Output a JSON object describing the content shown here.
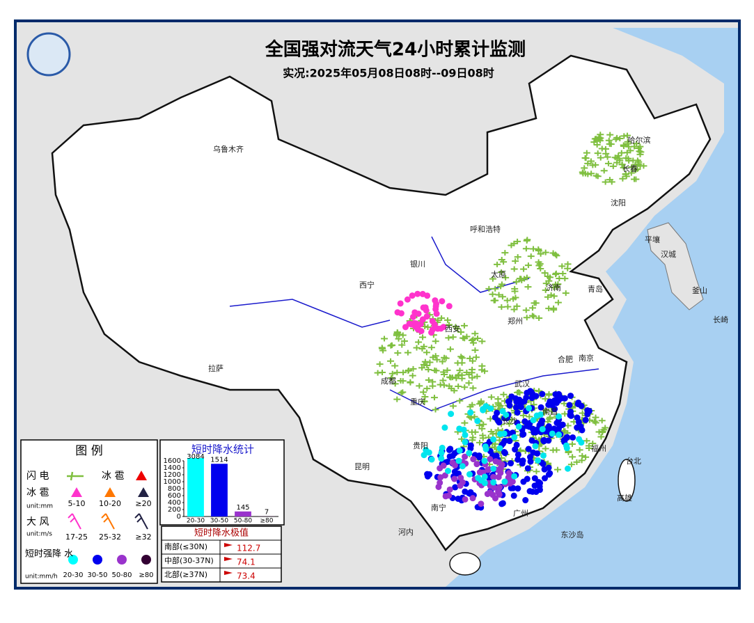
{
  "header": {
    "title": "全国强对流天气24小时累计监测",
    "subtitle": "实况:2025年05月08日08时--09日08时"
  },
  "cities": [
    "乌鲁木齐",
    "哈尔滨",
    "长春",
    "沈阳",
    "呼和浩特",
    "平壤",
    "汉城",
    "银川",
    "太原",
    "济南",
    "青岛",
    "釜山",
    "西宁",
    "郑州",
    "长崎",
    "西安",
    "合肥",
    "南京",
    "拉萨",
    "成都",
    "武汉",
    "重庆",
    "南昌",
    "长沙",
    "福州",
    "贵阳",
    "昆明",
    "台北",
    "南宁",
    "广州",
    "高雄",
    "河内",
    "东沙岛"
  ],
  "legend": {
    "title": "图 例",
    "lightning": "闪 电",
    "hail": "冰 雹",
    "hail_size": {
      "label": "冰 雹",
      "unit": "unit:mm",
      "items": [
        "5-10",
        "10-20",
        "≥20"
      ]
    },
    "wind": {
      "label": "大 风",
      "unit": "unit:m/s",
      "items": [
        "17-25",
        "25-32",
        "≥32"
      ]
    },
    "rain": {
      "label": "短时强降 水",
      "unit": "unit:mm/h",
      "items": [
        "20-30",
        "30-50",
        "50-80",
        "≥80"
      ]
    }
  },
  "stats": {
    "title": "短时降水统计",
    "categories": [
      "20-30",
      "30-50",
      "50-80",
      "≥80"
    ],
    "values": [
      3084,
      1514,
      145,
      7
    ],
    "colors": [
      "#00ffff",
      "#0000ee",
      "#9933cc",
      "#330033"
    ],
    "ylim": [
      0,
      1600
    ],
    "yticks": [
      0,
      200,
      400,
      600,
      800,
      1000,
      1200,
      1400,
      1600
    ]
  },
  "extremes": {
    "title": "短时降水极值",
    "rows": [
      [
        "南部(≤30N)",
        "112.7"
      ],
      [
        "中部(30-37N)",
        "74.1"
      ],
      [
        "北部(≥37N)",
        "73.4"
      ]
    ]
  }
}
